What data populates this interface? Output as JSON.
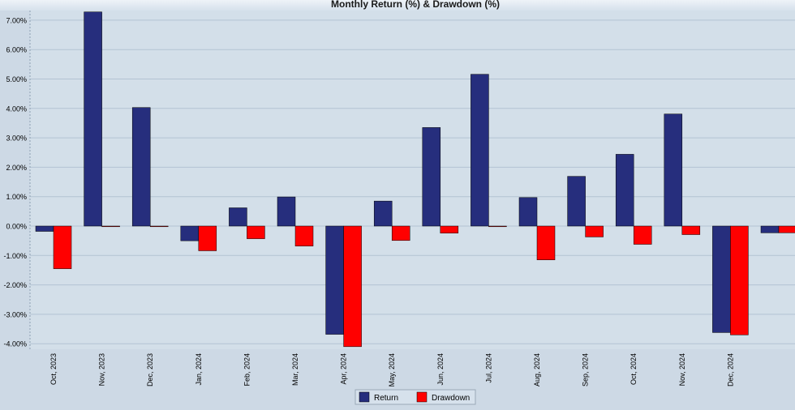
{
  "colors": {
    "background": "#cdd9e5",
    "plot_bg": "#d3dfe9",
    "gridline": "#b3c3d3",
    "return": "#262e7d",
    "drawdown": "#ff0000",
    "axis_text": "#000000"
  },
  "chart_data": {
    "type": "bar",
    "title": "Monthly Return (%) & Drawdown (%)",
    "xlabel": "",
    "ylabel": "",
    "ylim": [
      -4.1,
      7.3
    ],
    "yticks": [
      7,
      6,
      5,
      4,
      3,
      2,
      1,
      0,
      -1,
      -2,
      -3,
      -4
    ],
    "ytick_labels": [
      "7.00%",
      "6.00%",
      "5.00%",
      "4.00%",
      "3.00%",
      "2.00%",
      "1.00%",
      "0.00%",
      "-1.00%",
      "-2.00%",
      "-3.00%",
      "-4.00%"
    ],
    "grid": true,
    "legend_position": "bottom-center",
    "categories": [
      "Oct, 2023",
      "Nov, 2023",
      "Dec, 2023",
      "Jan, 2024",
      "Feb, 2024",
      "Mar, 2024",
      "Apr, 2024",
      "May, 2024",
      "Jun, 2024",
      "Jul, 2024",
      "Aug, 2024",
      "Sep, 2024",
      "Oct, 2024",
      "Nov, 2024",
      "Dec, 2024",
      ""
    ],
    "series": [
      {
        "name": "Return",
        "values": [
          -0.18,
          7.28,
          4.03,
          -0.5,
          0.62,
          0.99,
          -3.68,
          0.85,
          3.35,
          5.16,
          0.97,
          1.69,
          2.44,
          3.81,
          -3.62,
          -0.23
        ]
      },
      {
        "name": "Drawdown",
        "values": [
          -1.45,
          -0.02,
          -0.02,
          -0.84,
          -0.43,
          -0.68,
          -4.1,
          -0.49,
          -0.24,
          -0.02,
          -1.15,
          -0.37,
          -0.62,
          -0.29,
          -3.7,
          -0.23
        ]
      }
    ]
  }
}
